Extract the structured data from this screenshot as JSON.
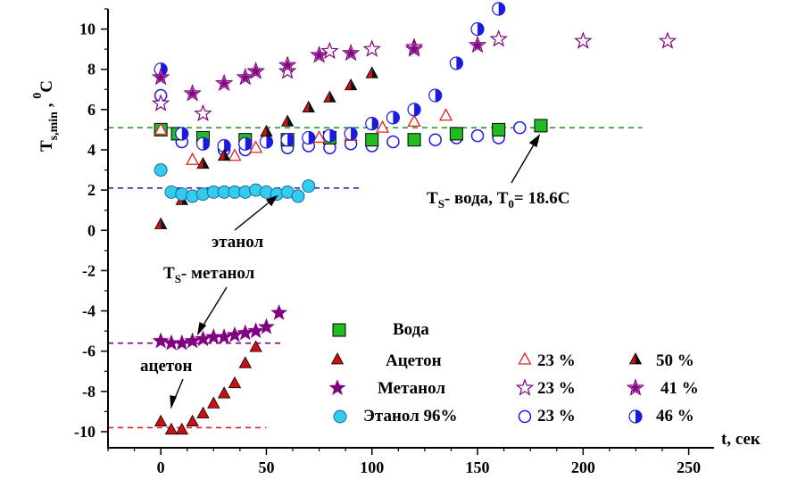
{
  "chart_data": {
    "type": "scatter",
    "xlabel": "t,  сек",
    "ylabel": "T",
    "ylabel_sub": "s,min",
    "ylabel_tail": " , ",
    "ylabel_sup": "0",
    "ylabel_unit": "C",
    "xlim": [
      -25,
      262
    ],
    "ylim": [
      -10.8,
      11.0
    ],
    "xticks": [
      0,
      50,
      100,
      150,
      200,
      250
    ],
    "xtick_labels": [
      "0",
      "50",
      "100",
      "150",
      "200",
      "250"
    ],
    "yticks": [
      -10,
      -8,
      -6,
      -4,
      -2,
      0,
      2,
      4,
      6,
      8,
      10
    ],
    "ytick_labels": [
      "-10",
      "-8",
      "-6",
      "-4",
      "-2",
      "0",
      "2",
      "4",
      "6",
      "8",
      "10"
    ],
    "reference_lines": [
      {
        "y": 5.1,
        "x": [
          -25,
          228
        ],
        "color": "#2a9a2a"
      },
      {
        "y": 2.1,
        "x": [
          -25,
          95
        ],
        "color": "#2a2ab0"
      },
      {
        "y": -5.6,
        "x": [
          -25,
          58
        ],
        "color": "#800080"
      },
      {
        "y": -9.8,
        "x": [
          -25,
          50
        ],
        "color": "#e02020"
      }
    ],
    "series": [
      {
        "name": "Вода",
        "marker": "square",
        "color": "#22bb22",
        "x": [
          0,
          8,
          20,
          40,
          60,
          80,
          100,
          120,
          140,
          160,
          180
        ],
        "y": [
          5.0,
          4.8,
          4.6,
          4.5,
          4.5,
          4.6,
          4.5,
          4.5,
          4.8,
          5.0,
          5.2
        ]
      },
      {
        "name": "Ацетон",
        "marker": "triangle",
        "color": "#cc1111",
        "x": [
          0,
          5,
          10,
          15,
          20,
          25,
          30,
          35,
          40,
          45
        ],
        "y": [
          -9.5,
          -9.9,
          -9.9,
          -9.5,
          -9.1,
          -8.6,
          -8.1,
          -7.6,
          -6.6,
          -5.8
        ]
      },
      {
        "name": "Ацетон 23 %",
        "marker": "triangle-open",
        "color": "#e02020",
        "x": [
          0,
          15,
          35,
          45,
          75,
          90,
          105,
          120,
          135
        ],
        "y": [
          5.0,
          3.5,
          3.7,
          4.1,
          4.6,
          4.7,
          5.1,
          5.4,
          5.7
        ]
      },
      {
        "name": "Ацетон 50 %",
        "marker": "triangle-half",
        "color": "#cc1111",
        "x": [
          0,
          10,
          20,
          30,
          50,
          60,
          70,
          80,
          90,
          100
        ],
        "y": [
          0.3,
          1.5,
          3.3,
          3.7,
          4.9,
          5.4,
          6.1,
          6.6,
          7.2,
          7.8
        ]
      },
      {
        "name": "Метанол",
        "marker": "star",
        "color": "#800080",
        "x": [
          0,
          5,
          10,
          15,
          20,
          25,
          30,
          35,
          40,
          45,
          50,
          56
        ],
        "y": [
          -5.5,
          -5.6,
          -5.6,
          -5.5,
          -5.4,
          -5.3,
          -5.3,
          -5.2,
          -5.1,
          -5.0,
          -4.8,
          -4.1
        ]
      },
      {
        "name": "Метанол 23 %",
        "marker": "star-open",
        "color": "#800080",
        "x": [
          0,
          20,
          45,
          60,
          80,
          100,
          120,
          160,
          200,
          240
        ],
        "y": [
          6.3,
          5.8,
          7.9,
          7.9,
          8.9,
          9.0,
          9.1,
          9.5,
          9.4,
          9.4
        ],
        "x_extra": [],
        "y_extra": []
      },
      {
        "name": "Метанол 41 %",
        "marker": "star-half",
        "color": "#800080",
        "x": [
          0,
          15,
          30,
          40,
          45,
          60,
          75,
          90,
          120,
          150
        ],
        "y": [
          7.6,
          6.8,
          7.3,
          7.6,
          7.9,
          8.2,
          8.7,
          8.8,
          9.0,
          9.2
        ]
      },
      {
        "name": "Этанол 96%",
        "marker": "circle",
        "color": "#33ccee",
        "x": [
          0,
          5,
          10,
          15,
          20,
          25,
          30,
          35,
          40,
          45,
          50,
          55,
          60,
          65,
          70
        ],
        "y": [
          3.0,
          1.9,
          1.8,
          1.7,
          1.8,
          1.9,
          1.9,
          1.9,
          1.9,
          2.0,
          1.9,
          1.8,
          1.9,
          1.7,
          2.2
        ]
      },
      {
        "name": "Этанол 23 %",
        "marker": "circle-open",
        "color": "#1a1ae0",
        "x": [
          0,
          10,
          30,
          40,
          60,
          70,
          80,
          90,
          100,
          110,
          120,
          130,
          140,
          150,
          160,
          170
        ],
        "y": [
          6.7,
          4.4,
          4.0,
          4.0,
          4.1,
          4.2,
          4.1,
          4.3,
          4.2,
          4.4,
          4.5,
          4.5,
          4.6,
          4.7,
          4.6,
          5.1
        ]
      },
      {
        "name": "Этанол 46 %",
        "marker": "circle-half",
        "color": "#1a1ae0",
        "x": [
          0,
          10,
          20,
          30,
          40,
          50,
          60,
          70,
          80,
          90,
          100,
          110,
          120,
          130,
          140,
          150,
          160
        ],
        "y": [
          8.0,
          4.8,
          4.3,
          4.2,
          4.3,
          4.4,
          4.5,
          4.6,
          4.7,
          4.8,
          5.3,
          5.6,
          6.0,
          6.7,
          8.3,
          10.0,
          11.0
        ]
      }
    ],
    "legend": {
      "placement": "bottom-right",
      "rows": [
        {
          "label": "Вода",
          "entries": [
            {
              "series": "Вода"
            }
          ]
        },
        {
          "label": "Ацетон",
          "entries": [
            {
              "series": "Ацетон"
            },
            {
              "series": "Ацетон 23 %",
              "text": "23 %"
            },
            {
              "series": "Ацетон 50 %",
              "text": "50 %"
            }
          ]
        },
        {
          "label": "Метанол",
          "entries": [
            {
              "series": "Метанол"
            },
            {
              "series": "Метанол 23 %",
              "text": "23 %"
            },
            {
              "series": "Метанол 41 %",
              "text": "41 %"
            }
          ]
        },
        {
          "label": "Этанол 96%",
          "entries": [
            {
              "series": "Этанол 96%"
            },
            {
              "series": "Этанол 23 %",
              "text": "23 %"
            },
            {
              "series": "Этанол 46 %",
              "text": "46 %"
            }
          ]
        }
      ]
    },
    "annotations": [
      {
        "text_main": "T",
        "text_sub": "S",
        "text_rest": "- вода, T",
        "text_sub2": "0",
        "text_end": "= 18.6C"
      },
      {
        "text": "этанол"
      },
      {
        "text_main": "T",
        "text_sub": "S",
        "text_rest": "- метанол"
      },
      {
        "text": "ацетон"
      }
    ]
  }
}
